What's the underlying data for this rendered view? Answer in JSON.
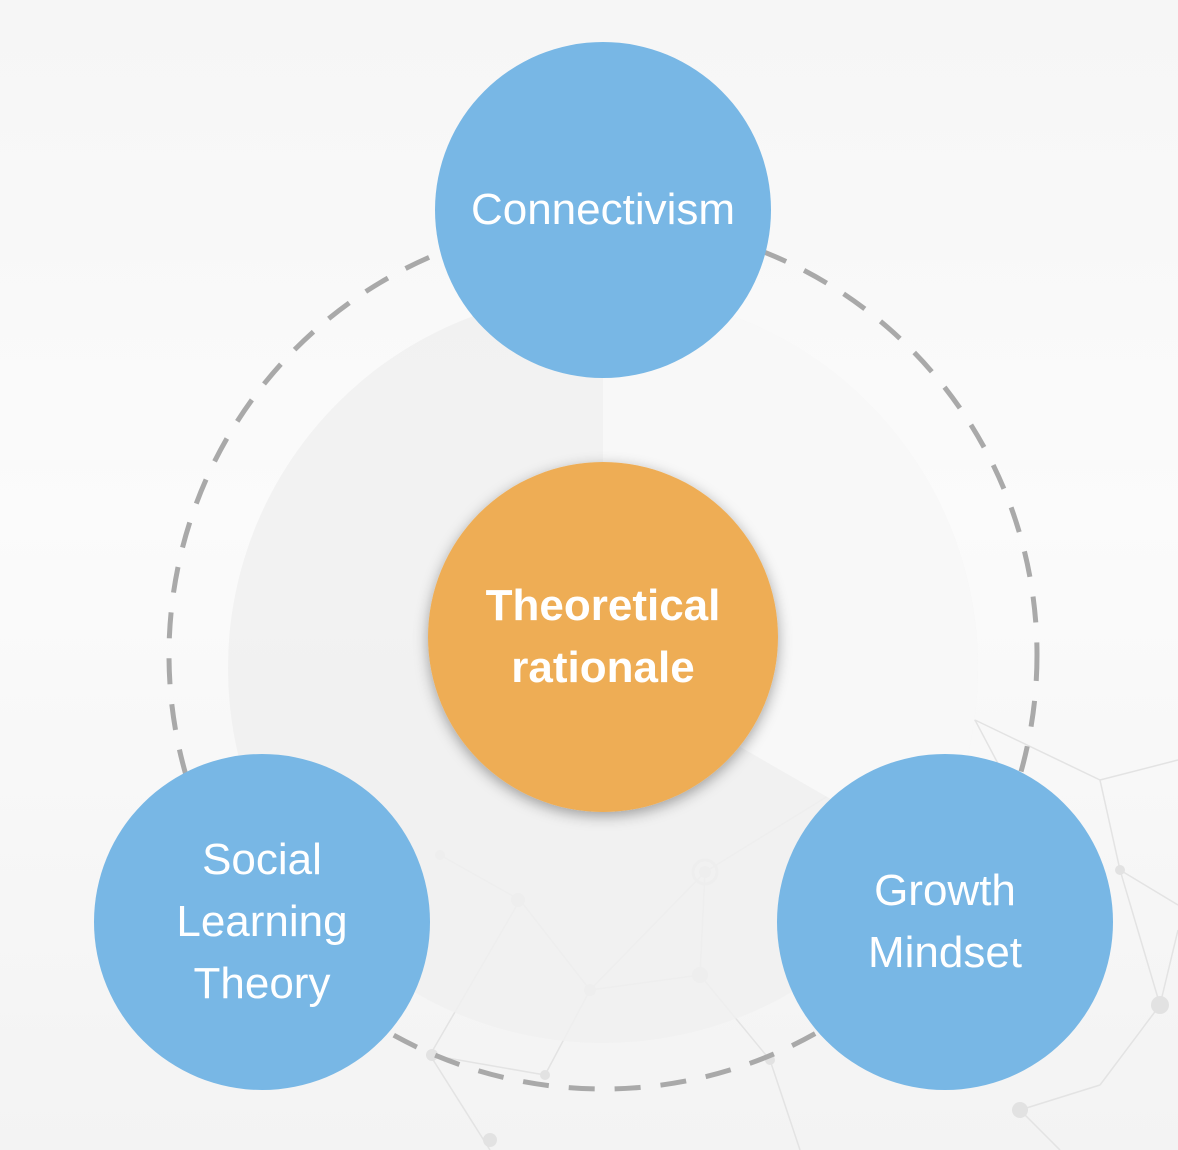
{
  "diagram": {
    "center": {
      "label": "Theoretical\nrationale",
      "color": "#eead55"
    },
    "nodes": [
      {
        "id": "connectivism",
        "label": "Connectivism"
      },
      {
        "id": "social-learning-theory",
        "label": "Social\nLearning\nTheory"
      },
      {
        "id": "growth-mindset",
        "label": "Growth\nMindset"
      }
    ],
    "node_color": "#78b7e5",
    "ring_color": "#a9a9a9",
    "background_motif": "network-lines"
  }
}
